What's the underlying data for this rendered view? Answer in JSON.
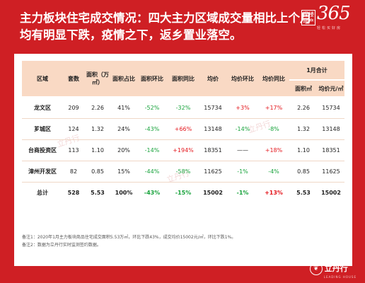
{
  "title": "主力板块住宅成交情况：四大主力区域成交量相比上个月均有明显下跌，疫情之下，返乡置业落空。",
  "brand": {
    "box_text": "探楼地产",
    "number": "365",
    "sub": "轻松买好房"
  },
  "table": {
    "headers": [
      "区域",
      "套数",
      "面积（万㎡）",
      "面积占比",
      "面积环比",
      "面积同比",
      "均价",
      "均价环比",
      "均价同比"
    ],
    "group_header": "1月合计",
    "group_sub": [
      "面积㎡",
      "均价元/㎡"
    ],
    "rows": [
      {
        "area": "龙文区",
        "units": "209",
        "area_size": "2.26",
        "share": "41%",
        "area_mom": "-52%",
        "area_yoy": "-32%",
        "price": "15734",
        "price_mom": "+3%",
        "price_yoy": "+17%",
        "jan_area": "2.26",
        "jan_price": "15734"
      },
      {
        "area": "芗城区",
        "units": "124",
        "area_size": "1.32",
        "share": "24%",
        "area_mom": "-43%",
        "area_yoy": "+66%",
        "price": "13148",
        "price_mom": "-14%",
        "price_yoy": "-8%",
        "jan_area": "1.32",
        "jan_price": "13148"
      },
      {
        "area": "台商投资区",
        "units": "113",
        "area_size": "1.10",
        "share": "20%",
        "area_mom": "-14%",
        "area_yoy": "+194%",
        "price": "18351",
        "price_mom": "——",
        "price_yoy": "+18%",
        "jan_area": "1.10",
        "jan_price": "18351"
      },
      {
        "area": "漳州开发区",
        "units": "82",
        "area_size": "0.85",
        "share": "15%",
        "area_mom": "-44%",
        "area_yoy": "-58%",
        "price": "11625",
        "price_mom": "-1%",
        "price_yoy": "-4%",
        "jan_area": "0.85",
        "jan_price": "11625"
      },
      {
        "area": "总计",
        "units": "528",
        "area_size": "5.53",
        "share": "100%",
        "area_mom": "-43%",
        "area_yoy": "-15%",
        "price": "15002",
        "price_mom": "-1%",
        "price_yoy": "+13%",
        "jan_area": "5.53",
        "jan_price": "15002"
      }
    ]
  },
  "notes": [
    "备注1：2020年1月主力板块商品住宅成交面积5.53万㎡，环比下跌43%，成交均价15002元/㎡，环比下跌1%。",
    "备注2：数据为立丹行实时监测签约数据。"
  ],
  "watermark": "立丹行",
  "bottom_logo": {
    "name": "立丹行",
    "en": "LEADING HOUSE"
  },
  "colors": {
    "background": "#cf1f24",
    "header": "#f9d9c4",
    "negative": "#18a33c",
    "positive": "#e4171d"
  }
}
